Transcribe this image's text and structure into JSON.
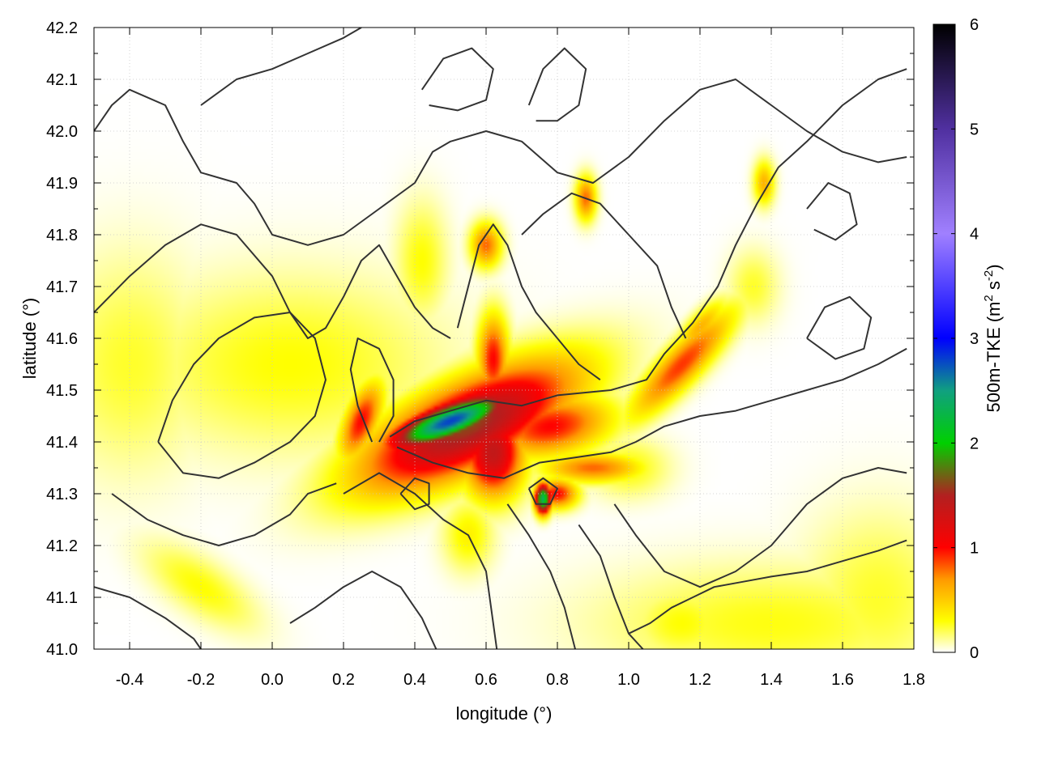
{
  "chart_data": {
    "type": "heatmap",
    "title": "",
    "xlabel": "longitude (°)",
    "ylabel": "latitude (°)",
    "colorbar_label": {
      "base": "500m-TKE (m",
      "sup1": "2",
      "mid": " s",
      "sup2": "-2",
      "end": ")"
    },
    "xlim": [
      -0.5,
      1.8
    ],
    "ylim": [
      41.0,
      42.2
    ],
    "x_ticks": [
      -0.4,
      -0.2,
      0.0,
      0.2,
      0.4,
      0.6,
      0.8,
      1.0,
      1.2,
      1.4,
      1.6,
      1.8
    ],
    "x_tick_labels": [
      "-0.4",
      "-0.2",
      "0.0",
      "0.2",
      "0.4",
      "0.6",
      "0.8",
      "1.0",
      "1.2",
      "1.4",
      "1.6",
      "1.8"
    ],
    "y_ticks": [
      41.0,
      41.1,
      41.2,
      41.3,
      41.4,
      41.5,
      41.6,
      41.7,
      41.8,
      41.9,
      42.0,
      42.1,
      42.2
    ],
    "y_tick_labels": [
      "41.0",
      "41.1",
      "41.2",
      "41.3",
      "41.4",
      "41.5",
      "41.6",
      "41.7",
      "41.8",
      "41.9",
      "42.0",
      "42.1",
      "42.2"
    ],
    "color_range": [
      0,
      6
    ],
    "colorbar_ticks": [
      0,
      1,
      2,
      3,
      4,
      5,
      6
    ],
    "colorbar_tick_labels": [
      "0",
      "1",
      "2",
      "3",
      "4",
      "5",
      "6"
    ],
    "colormap": [
      {
        "value": 0.0,
        "color": "#ffffff"
      },
      {
        "value": 0.3,
        "color": "#ffff00"
      },
      {
        "value": 0.7,
        "color": "#ff9900"
      },
      {
        "value": 1.0,
        "color": "#ff0000"
      },
      {
        "value": 1.5,
        "color": "#b22020"
      },
      {
        "value": 2.0,
        "color": "#00d000"
      },
      {
        "value": 2.5,
        "color": "#10a080"
      },
      {
        "value": 3.0,
        "color": "#0000ff"
      },
      {
        "value": 4.0,
        "color": "#a080ff"
      },
      {
        "value": 5.0,
        "color": "#5030a0"
      },
      {
        "value": 6.0,
        "color": "#000000"
      }
    ],
    "grid": true,
    "field_features": [
      {
        "lon": 0.5,
        "lat": 41.44,
        "value": 2.8,
        "sx": 0.12,
        "sy": 0.025,
        "rot": 0.25
      },
      {
        "lon": 0.55,
        "lat": 41.43,
        "value": 1.6,
        "sx": 0.22,
        "sy": 0.06,
        "rot": 0.3
      },
      {
        "lon": 0.62,
        "lat": 41.38,
        "value": 1.4,
        "sx": 0.06,
        "sy": 0.06,
        "rot": 0.0
      },
      {
        "lon": 0.62,
        "lat": 41.56,
        "value": 1.0,
        "sx": 0.03,
        "sy": 0.06,
        "rot": 0.0
      },
      {
        "lon": 0.76,
        "lat": 41.29,
        "value": 2.4,
        "sx": 0.015,
        "sy": 0.02,
        "rot": 0.0
      },
      {
        "lon": 0.8,
        "lat": 41.3,
        "value": 1.0,
        "sx": 0.04,
        "sy": 0.02,
        "rot": 0.0
      },
      {
        "lon": 0.78,
        "lat": 41.43,
        "value": 1.0,
        "sx": 0.12,
        "sy": 0.04,
        "rot": 0.1
      },
      {
        "lon": 0.25,
        "lat": 41.44,
        "value": 1.0,
        "sx": 0.03,
        "sy": 0.06,
        "rot": -0.6
      },
      {
        "lon": 0.9,
        "lat": 41.35,
        "value": 0.8,
        "sx": 0.1,
        "sy": 0.02,
        "rot": 0.0
      },
      {
        "lon": 1.15,
        "lat": 41.55,
        "value": 0.9,
        "sx": 0.12,
        "sy": 0.03,
        "rot": 0.6
      },
      {
        "lon": 1.2,
        "lat": 41.62,
        "value": 0.6,
        "sx": 0.06,
        "sy": 0.02,
        "rot": 0.6
      },
      {
        "lon": 0.6,
        "lat": 41.78,
        "value": 0.8,
        "sx": 0.03,
        "sy": 0.03,
        "rot": 0.0
      },
      {
        "lon": 0.88,
        "lat": 41.87,
        "value": 0.8,
        "sx": 0.02,
        "sy": 0.03,
        "rot": 0.0
      },
      {
        "lon": 1.38,
        "lat": 41.9,
        "value": 0.6,
        "sx": 0.02,
        "sy": 0.03,
        "rot": 0.0
      },
      {
        "lon": 0.05,
        "lat": 41.55,
        "value": 0.3,
        "sx": 0.3,
        "sy": 0.12,
        "rot": 0.0
      },
      {
        "lon": -0.4,
        "lat": 41.55,
        "value": 0.25,
        "sx": 0.15,
        "sy": 0.15,
        "rot": 0.0
      },
      {
        "lon": -0.2,
        "lat": 41.12,
        "value": 0.3,
        "sx": 0.12,
        "sy": 0.04,
        "rot": -0.4
      },
      {
        "lon": 0.42,
        "lat": 41.75,
        "value": 0.3,
        "sx": 0.05,
        "sy": 0.08,
        "rot": 0.0
      },
      {
        "lon": 1.4,
        "lat": 41.05,
        "value": 0.28,
        "sx": 0.35,
        "sy": 0.08,
        "rot": 0.0
      },
      {
        "lon": 1.7,
        "lat": 41.1,
        "value": 0.25,
        "sx": 0.15,
        "sy": 0.12,
        "rot": 0.0
      },
      {
        "lon": 1.15,
        "lat": 41.05,
        "value": 0.3,
        "sx": 0.1,
        "sy": 0.05,
        "rot": 0.0
      },
      {
        "lon": 1.0,
        "lat": 41.35,
        "value": 0.3,
        "sx": 0.08,
        "sy": 0.04,
        "rot": 0.0
      },
      {
        "lon": 0.55,
        "lat": 41.22,
        "value": 0.35,
        "sx": 0.05,
        "sy": 0.05,
        "rot": 0.0
      },
      {
        "lon": 1.35,
        "lat": 41.7,
        "value": 0.25,
        "sx": 0.05,
        "sy": 0.05,
        "rot": 0.0
      }
    ],
    "contours": [
      [
        [
          0.33,
          41.41
        ],
        [
          0.4,
          41.44
        ],
        [
          0.5,
          41.46
        ],
        [
          0.6,
          41.48
        ],
        [
          0.7,
          41.47
        ],
        [
          0.8,
          41.49
        ],
        [
          0.95,
          41.5
        ],
        [
          1.05,
          41.52
        ],
        [
          1.1,
          41.57
        ],
        [
          1.18,
          41.63
        ],
        [
          1.25,
          41.7
        ],
        [
          1.3,
          41.78
        ],
        [
          1.36,
          41.86
        ],
        [
          1.42,
          41.93
        ],
        [
          1.5,
          41.98
        ],
        [
          1.6,
          42.05
        ],
        [
          1.7,
          42.1
        ],
        [
          1.78,
          42.12
        ]
      ],
      [
        [
          0.35,
          41.39
        ],
        [
          0.45,
          41.36
        ],
        [
          0.55,
          41.34
        ],
        [
          0.65,
          41.33
        ],
        [
          0.75,
          41.36
        ],
        [
          0.85,
          41.37
        ],
        [
          0.95,
          41.38
        ],
        [
          1.02,
          41.4
        ],
        [
          1.1,
          41.43
        ],
        [
          1.2,
          41.45
        ],
        [
          1.3,
          41.46
        ],
        [
          1.4,
          41.48
        ],
        [
          1.5,
          41.5
        ],
        [
          1.6,
          41.52
        ],
        [
          1.7,
          41.55
        ],
        [
          1.78,
          41.58
        ]
      ],
      [
        [
          0.2,
          41.3
        ],
        [
          0.3,
          41.34
        ],
        [
          0.4,
          41.3
        ],
        [
          0.48,
          41.25
        ],
        [
          0.55,
          41.22
        ],
        [
          0.6,
          41.15
        ],
        [
          0.62,
          41.05
        ],
        [
          0.63,
          41.0
        ]
      ],
      [
        [
          0.66,
          41.28
        ],
        [
          0.72,
          41.22
        ],
        [
          0.78,
          41.15
        ],
        [
          0.82,
          41.08
        ],
        [
          0.85,
          41.0
        ]
      ],
      [
        [
          0.86,
          41.24
        ],
        [
          0.92,
          41.18
        ],
        [
          0.96,
          41.1
        ],
        [
          1.0,
          41.03
        ],
        [
          1.04,
          41.0
        ]
      ],
      [
        [
          0.96,
          41.28
        ],
        [
          1.02,
          41.22
        ],
        [
          1.1,
          41.15
        ],
        [
          1.2,
          41.12
        ],
        [
          1.3,
          41.15
        ],
        [
          1.4,
          41.2
        ],
        [
          1.5,
          41.28
        ],
        [
          1.6,
          41.33
        ],
        [
          1.7,
          41.35
        ],
        [
          1.78,
          41.34
        ]
      ],
      [
        [
          1.0,
          41.03
        ],
        [
          1.06,
          41.05
        ],
        [
          1.12,
          41.08
        ],
        [
          1.18,
          41.1
        ],
        [
          1.24,
          41.12
        ],
        [
          1.32,
          41.13
        ],
        [
          1.4,
          41.14
        ],
        [
          1.5,
          41.15
        ],
        [
          1.6,
          41.17
        ],
        [
          1.7,
          41.19
        ],
        [
          1.78,
          41.21
        ]
      ],
      [
        [
          -0.5,
          42.0
        ],
        [
          -0.45,
          42.05
        ],
        [
          -0.4,
          42.08
        ],
        [
          -0.3,
          42.05
        ],
        [
          -0.25,
          41.98
        ],
        [
          -0.2,
          41.92
        ],
        [
          -0.1,
          41.9
        ],
        [
          -0.05,
          41.86
        ],
        [
          0.0,
          41.8
        ],
        [
          0.1,
          41.78
        ],
        [
          0.2,
          41.8
        ],
        [
          0.3,
          41.85
        ],
        [
          0.4,
          41.9
        ],
        [
          0.45,
          41.96
        ],
        [
          0.5,
          41.98
        ],
        [
          0.6,
          42.0
        ],
        [
          0.7,
          41.98
        ],
        [
          0.8,
          41.92
        ],
        [
          0.9,
          41.9
        ],
        [
          1.0,
          41.95
        ],
        [
          1.1,
          42.02
        ],
        [
          1.2,
          42.08
        ],
        [
          1.3,
          42.1
        ],
        [
          1.4,
          42.05
        ],
        [
          1.5,
          42.0
        ],
        [
          1.6,
          41.96
        ],
        [
          1.7,
          41.94
        ],
        [
          1.78,
          41.95
        ]
      ],
      [
        [
          -0.5,
          41.65
        ],
        [
          -0.4,
          41.72
        ],
        [
          -0.3,
          41.78
        ],
        [
          -0.2,
          41.82
        ],
        [
          -0.1,
          41.8
        ],
        [
          0.0,
          41.72
        ],
        [
          0.05,
          41.65
        ],
        [
          0.1,
          41.6
        ],
        [
          0.15,
          41.62
        ],
        [
          0.2,
          41.68
        ],
        [
          0.25,
          41.75
        ],
        [
          0.3,
          41.78
        ],
        [
          0.35,
          41.72
        ],
        [
          0.4,
          41.66
        ],
        [
          0.45,
          41.62
        ],
        [
          0.5,
          41.6
        ]
      ],
      [
        [
          -0.32,
          41.4
        ],
        [
          -0.28,
          41.48
        ],
        [
          -0.22,
          41.55
        ],
        [
          -0.15,
          41.6
        ],
        [
          -0.05,
          41.64
        ],
        [
          0.05,
          41.65
        ],
        [
          0.12,
          41.6
        ],
        [
          0.15,
          41.52
        ],
        [
          0.12,
          41.45
        ],
        [
          0.05,
          41.4
        ],
        [
          -0.05,
          41.36
        ],
        [
          -0.15,
          41.33
        ],
        [
          -0.25,
          41.34
        ],
        [
          -0.32,
          41.4
        ]
      ],
      [
        [
          -0.45,
          41.3
        ],
        [
          -0.35,
          41.25
        ],
        [
          -0.25,
          41.22
        ],
        [
          -0.15,
          41.2
        ],
        [
          -0.05,
          41.22
        ],
        [
          0.05,
          41.26
        ],
        [
          0.1,
          41.3
        ],
        [
          0.18,
          41.32
        ]
      ],
      [
        [
          -0.5,
          41.12
        ],
        [
          -0.4,
          41.1
        ],
        [
          -0.3,
          41.06
        ],
        [
          -0.22,
          41.02
        ],
        [
          -0.2,
          41.0
        ]
      ],
      [
        [
          0.05,
          41.05
        ],
        [
          0.12,
          41.08
        ],
        [
          0.2,
          41.12
        ],
        [
          0.28,
          41.15
        ],
        [
          0.36,
          41.12
        ],
        [
          0.42,
          41.06
        ],
        [
          0.46,
          41.0
        ]
      ],
      [
        [
          0.52,
          41.62
        ],
        [
          0.55,
          41.7
        ],
        [
          0.58,
          41.78
        ],
        [
          0.62,
          41.82
        ],
        [
          0.66,
          41.78
        ],
        [
          0.7,
          41.7
        ],
        [
          0.74,
          41.65
        ],
        [
          0.8,
          41.6
        ],
        [
          0.86,
          41.55
        ],
        [
          0.92,
          41.52
        ]
      ],
      [
        [
          0.7,
          41.8
        ],
        [
          0.76,
          41.84
        ],
        [
          0.84,
          41.88
        ],
        [
          0.92,
          41.86
        ],
        [
          1.0,
          41.8
        ],
        [
          1.08,
          41.74
        ],
        [
          1.12,
          41.66
        ],
        [
          1.16,
          41.6
        ]
      ],
      [
        [
          0.28,
          41.4
        ],
        [
          0.24,
          41.47
        ],
        [
          0.22,
          41.54
        ],
        [
          0.24,
          41.6
        ],
        [
          0.3,
          41.58
        ],
        [
          0.34,
          41.52
        ],
        [
          0.34,
          41.45
        ],
        [
          0.3,
          41.4
        ]
      ],
      [
        [
          1.5,
          41.6
        ],
        [
          1.55,
          41.66
        ],
        [
          1.62,
          41.68
        ],
        [
          1.68,
          41.64
        ],
        [
          1.66,
          41.58
        ],
        [
          1.58,
          41.56
        ],
        [
          1.5,
          41.6
        ]
      ],
      [
        [
          0.42,
          42.08
        ],
        [
          0.48,
          42.14
        ],
        [
          0.56,
          42.16
        ],
        [
          0.62,
          42.12
        ],
        [
          0.6,
          42.06
        ],
        [
          0.52,
          42.04
        ],
        [
          0.44,
          42.05
        ]
      ],
      [
        [
          0.72,
          42.05
        ],
        [
          0.76,
          42.12
        ],
        [
          0.82,
          42.16
        ],
        [
          0.88,
          42.12
        ],
        [
          0.86,
          42.05
        ],
        [
          0.8,
          42.02
        ],
        [
          0.74,
          42.02
        ]
      ],
      [
        [
          -0.2,
          42.05
        ],
        [
          -0.1,
          42.1
        ],
        [
          0.0,
          42.12
        ],
        [
          0.1,
          42.15
        ],
        [
          0.2,
          42.18
        ],
        [
          0.25,
          42.2
        ]
      ],
      [
        [
          1.5,
          41.85
        ],
        [
          1.56,
          41.9
        ],
        [
          1.62,
          41.88
        ],
        [
          1.64,
          41.82
        ],
        [
          1.58,
          41.79
        ],
        [
          1.52,
          41.81
        ]
      ],
      [
        [
          0.72,
          41.31
        ],
        [
          0.76,
          41.33
        ],
        [
          0.8,
          41.31
        ],
        [
          0.78,
          41.28
        ],
        [
          0.74,
          41.28
        ],
        [
          0.72,
          41.31
        ]
      ],
      [
        [
          0.36,
          41.3
        ],
        [
          0.4,
          41.33
        ],
        [
          0.44,
          41.32
        ],
        [
          0.44,
          41.28
        ],
        [
          0.4,
          41.27
        ],
        [
          0.36,
          41.3
        ]
      ]
    ]
  }
}
